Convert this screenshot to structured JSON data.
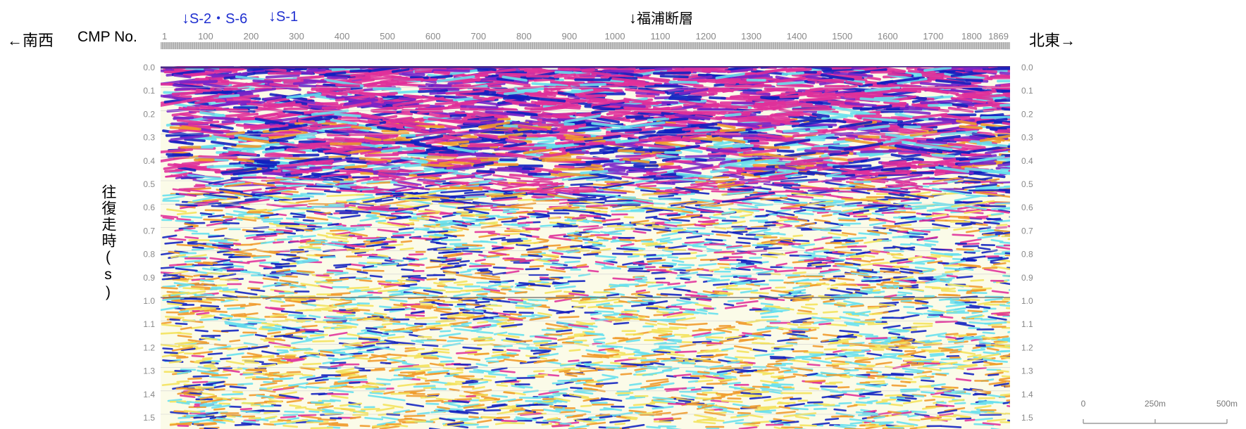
{
  "header": {
    "left_direction": "←南西",
    "cmp_label": "CMP No.",
    "right_direction": "北東→"
  },
  "markers": [
    {
      "label": "S-2・S-6",
      "color": "#1f2fd0"
    },
    {
      "label": "S-1",
      "color": "#1f2fd0"
    },
    {
      "label": "福浦断層",
      "color": "#000000"
    }
  ],
  "y_axis": {
    "label": "往復走時(s)",
    "ticks": [
      "0.0",
      "0.1",
      "0.2",
      "0.3",
      "0.4",
      "0.5",
      "0.6",
      "0.7",
      "0.8",
      "0.9",
      "1.0",
      "1.1",
      "1.2",
      "1.3",
      "1.4",
      "1.5"
    ]
  },
  "x_axis": {
    "ticks": [
      "1",
      "100",
      "200",
      "300",
      "400",
      "500",
      "600",
      "700",
      "800",
      "900",
      "1000",
      "1100",
      "1200",
      "1300",
      "1400",
      "1500",
      "1600",
      "1700",
      "1800",
      "1869"
    ]
  },
  "scale_bar": {
    "labels": [
      "0",
      "250m",
      "500m"
    ]
  },
  "colors": {
    "magenta": "#e0309a",
    "blue": "#1020c0",
    "purple": "#7a24c8",
    "cyan": "#66e0ee",
    "orange": "#f09a2a",
    "yellow": "#f4e25a"
  }
}
